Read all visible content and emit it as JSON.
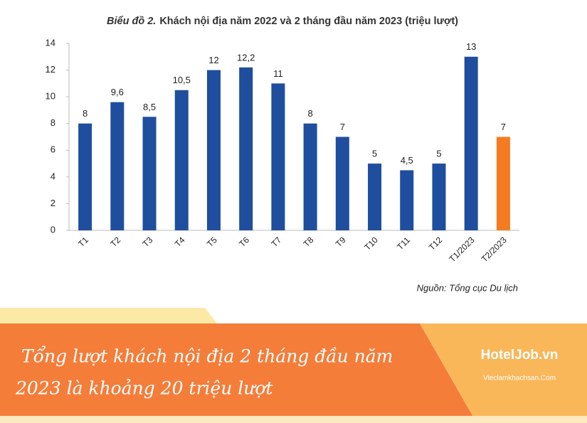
{
  "chart_data": {
    "type": "bar",
    "title_label": "Biểu đồ 2.",
    "title": "Khách nội địa năm 2022 và 2 tháng đầu năm 2023 (triệu lượt)",
    "categories": [
      "T1",
      "T2",
      "T3",
      "T4",
      "T5",
      "T6",
      "T7",
      "T8",
      "T9",
      "T10",
      "T11",
      "T12",
      "T1/2023",
      "T2/2023"
    ],
    "values": [
      8,
      9.6,
      8.5,
      10.5,
      12,
      12.2,
      11,
      8,
      7,
      5,
      4.5,
      5,
      13,
      7
    ],
    "value_labels": [
      "8",
      "9,6",
      "8,5",
      "10,5",
      "12",
      "12,2",
      "11",
      "8",
      "7",
      "5",
      "4,5",
      "5",
      "13",
      "7"
    ],
    "colors": [
      "#1f4e9e",
      "#1f4e9e",
      "#1f4e9e",
      "#1f4e9e",
      "#1f4e9e",
      "#1f4e9e",
      "#1f4e9e",
      "#1f4e9e",
      "#1f4e9e",
      "#1f4e9e",
      "#1f4e9e",
      "#1f4e9e",
      "#1f4e9e",
      "#f47b20"
    ],
    "ylim": [
      0,
      14
    ],
    "yticks": [
      0,
      2,
      4,
      6,
      8,
      10,
      12,
      14
    ],
    "source": "Nguồn: Tổng cục Du lịch"
  },
  "banner": {
    "lines": [
      "Tổng lượt khách nội địa 2 tháng đầu năm",
      "2023 là khoảng 20 triệu lượt"
    ]
  },
  "brand": {
    "name": "HotelJob.vn",
    "site": "Vieclamkhachsan.Com"
  }
}
